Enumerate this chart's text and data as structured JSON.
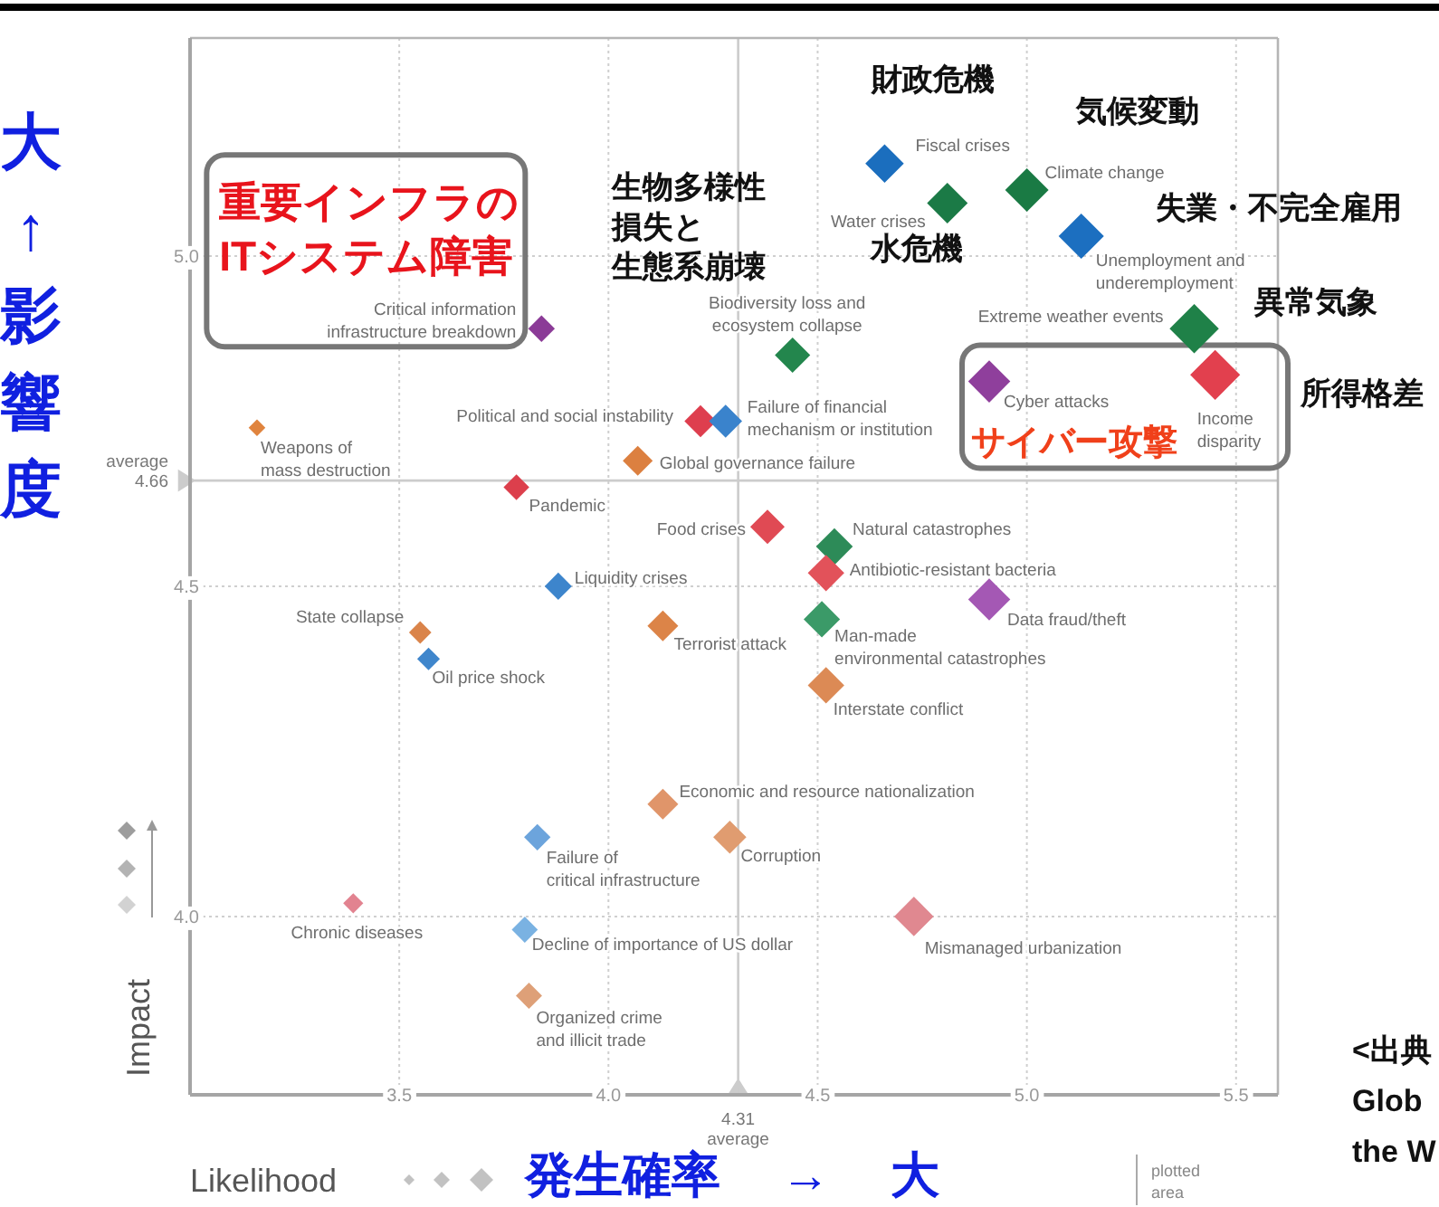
{
  "chart_data": {
    "type": "scatter",
    "xlabel": "Likelihood",
    "ylabel": "Impact",
    "xlim": [
      3.0,
      5.6
    ],
    "ylim": [
      3.73,
      5.33
    ],
    "xticks": [
      3.5,
      {
        "value": 4,
        "label": "4.0"
      },
      4.5,
      {
        "value": 5,
        "label": "5.0"
      },
      5.5
    ],
    "yticks": [
      {
        "value": 4,
        "label": "4.0"
      },
      4.5,
      {
        "value": 5,
        "label": "5.0"
      }
    ],
    "grid": true,
    "marker": "diamond",
    "ref_lines": [
      {
        "axis": "y",
        "value": 4.66,
        "label": "average\n4.66",
        "color": "#cccccc"
      },
      {
        "axis": "x",
        "value": 4.31,
        "label": "4.31\naverage",
        "color": "#cccccc"
      }
    ],
    "series": [
      {
        "name": "Fiscal crises",
        "color": "#1b6ebe",
        "x": [
          4.66
        ],
        "values": [
          5.14
        ]
      },
      {
        "name": "Water crises",
        "color": "#1b7a46",
        "x": [
          4.81
        ],
        "values": [
          5.08
        ]
      },
      {
        "name": "Climate change",
        "color": "#1a7a44",
        "x": [
          5.0
        ],
        "values": [
          5.1
        ]
      },
      {
        "name": "Unemployment and\nunderemployment",
        "color": "#1c6fc0",
        "x": [
          5.13
        ],
        "values": [
          5.03
        ]
      },
      {
        "name": "Extreme weather events",
        "color": "#1f8148",
        "x": [
          5.4
        ],
        "values": [
          4.89
        ]
      },
      {
        "name": "Income\ndisparity",
        "color": "#e2404e",
        "x": [
          5.45
        ],
        "values": [
          4.82
        ]
      },
      {
        "name": "Cyber attacks",
        "color": "#8f3f9c",
        "x": [
          4.91
        ],
        "values": [
          4.81
        ]
      },
      {
        "name": "Biodiversity loss and\necosystem collapse",
        "color": "#23864d",
        "x": [
          4.44
        ],
        "values": [
          4.85
        ]
      },
      {
        "name": "Critical information\ninfrastructure breakdown",
        "color": "#8b3b97",
        "x": [
          3.84
        ],
        "values": [
          4.89
        ]
      },
      {
        "name": "Political and social instability",
        "color": "#de3e4e",
        "x": [
          4.22
        ],
        "values": [
          4.75
        ]
      },
      {
        "name": "Failure of financial\nmechanism or institution",
        "color": "#3a83cc",
        "x": [
          4.28
        ],
        "values": [
          4.75
        ]
      },
      {
        "name": "Global governance failure",
        "color": "#dc8040",
        "x": [
          4.07
        ],
        "values": [
          4.69
        ]
      },
      {
        "name": "Weapons of\nmass destruction",
        "color": "#e0843e",
        "x": [
          3.16
        ],
        "values": [
          4.74
        ]
      },
      {
        "name": "Pandemic",
        "color": "#dc3f4c",
        "x": [
          3.78
        ],
        "values": [
          4.65
        ]
      },
      {
        "name": "Food crises",
        "color": "#e04a54",
        "x": [
          4.38
        ],
        "values": [
          4.59
        ]
      },
      {
        "name": "Natural catastrophes",
        "color": "#2d8b58",
        "x": [
          4.54
        ],
        "values": [
          4.56
        ]
      },
      {
        "name": "Antibiotic-resistant bacteria",
        "color": "#e2525a",
        "x": [
          4.52
        ],
        "values": [
          4.52
        ]
      },
      {
        "name": "Liquidity crises",
        "color": "#3d85cc",
        "x": [
          3.88
        ],
        "values": [
          4.5
        ]
      },
      {
        "name": "Data fraud/theft",
        "color": "#a458b4",
        "x": [
          4.91
        ],
        "values": [
          4.48
        ]
      },
      {
        "name": "Man-made\nenvironmental catastrophes",
        "color": "#3b9a68",
        "x": [
          4.51
        ],
        "values": [
          4.45
        ]
      },
      {
        "name": "Terrorist attack",
        "color": "#dc8448",
        "x": [
          4.13
        ],
        "values": [
          4.44
        ]
      },
      {
        "name": "State collapse",
        "color": "#da844a",
        "x": [
          3.55
        ],
        "values": [
          4.43
        ]
      },
      {
        "name": "Oil price shock",
        "color": "#3f86cc",
        "x": [
          3.57
        ],
        "values": [
          4.39
        ]
      },
      {
        "name": "Interstate conflict",
        "color": "#dc8a55",
        "x": [
          4.52
        ],
        "values": [
          4.35
        ]
      },
      {
        "name": "Economic and resource nationalization",
        "color": "#e0956a",
        "x": [
          4.13
        ],
        "values": [
          4.17
        ]
      },
      {
        "name": "Failure of\ncritical infrastructure",
        "color": "#6ca4dc",
        "x": [
          3.83
        ],
        "values": [
          4.12
        ]
      },
      {
        "name": "Corruption",
        "color": "#e09c70",
        "x": [
          4.29
        ],
        "values": [
          4.12
        ]
      },
      {
        "name": "Chronic diseases",
        "color": "#e28390",
        "x": [
          3.39
        ],
        "values": [
          4.02
        ]
      },
      {
        "name": "Decline of importance of US dollar",
        "color": "#7ab2e2",
        "x": [
          3.8
        ],
        "values": [
          3.98
        ]
      },
      {
        "name": "Mismanaged urbanization",
        "color": "#e08890",
        "x": [
          4.73
        ],
        "values": [
          4.0
        ]
      },
      {
        "name": "Organized crime\nand illicit trade",
        "color": "#dea078",
        "x": [
          3.81
        ],
        "values": [
          3.88
        ]
      }
    ],
    "annotations": [
      {
        "text": "財政危機",
        "x": 4.66,
        "y": 5.14
      },
      {
        "text": "気候変動",
        "x": 5.0,
        "y": 5.1
      },
      {
        "text": "失業・不完全雇用",
        "x": 5.13,
        "y": 5.03
      },
      {
        "text": "異常気象",
        "x": 5.4,
        "y": 4.89
      },
      {
        "text": "所得格差",
        "x": 5.45,
        "y": 4.82
      },
      {
        "text": "水危機",
        "x": 4.81,
        "y": 5.08
      },
      {
        "text": "生物多様性損失と生態系崩壊",
        "x": 4.44,
        "y": 4.85
      },
      {
        "text": "重要インフラのITシステム障害",
        "x": 3.84,
        "y": 4.89
      },
      {
        "text": "サイバー攻撃",
        "x": 4.91,
        "y": 4.81
      },
      "大↑影響度",
      "発生確率 → 大",
      "plotted\narea",
      "<出典\nGlob\nthe W"
    ]
  }
}
